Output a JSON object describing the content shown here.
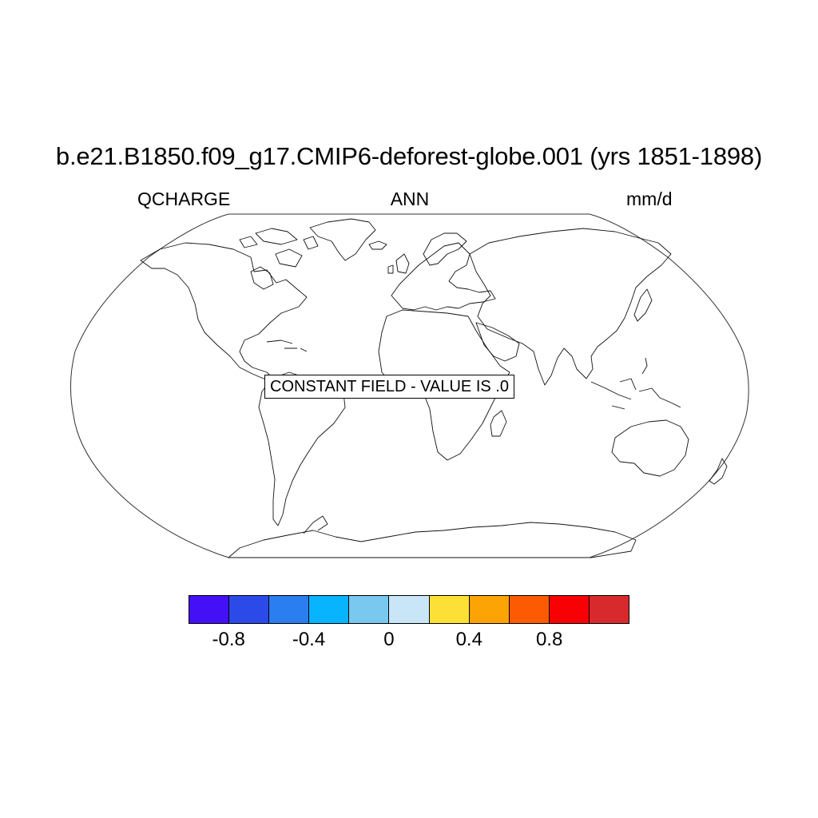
{
  "header": {
    "title": "b.e21.B1850.f09_g17.CMIP6-deforest-globe.001 (yrs 1851-1898)",
    "variable": "QCHARGE",
    "season": "ANN",
    "units": "mm/d"
  },
  "map": {
    "projection": "robinson",
    "message": "CONSTANT FIELD - VALUE IS .0",
    "outline_color": "#000000",
    "background": "#ffffff"
  },
  "colorbar": {
    "colors": [
      "#4410f5",
      "#2c4ae8",
      "#2b7ef0",
      "#08b4fd",
      "#78c8f0",
      "#c8e6f8",
      "#fde036",
      "#fca306",
      "#fc5b04",
      "#f80104",
      "#d82a2c"
    ],
    "tick_labels": [
      {
        "label": "-0.8",
        "value": -0.8
      },
      {
        "label": "-0.4",
        "value": -0.4
      },
      {
        "label": "0",
        "value": 0
      },
      {
        "label": "0.4",
        "value": 0.4
      },
      {
        "label": "0.8",
        "value": 0.8
      }
    ]
  }
}
